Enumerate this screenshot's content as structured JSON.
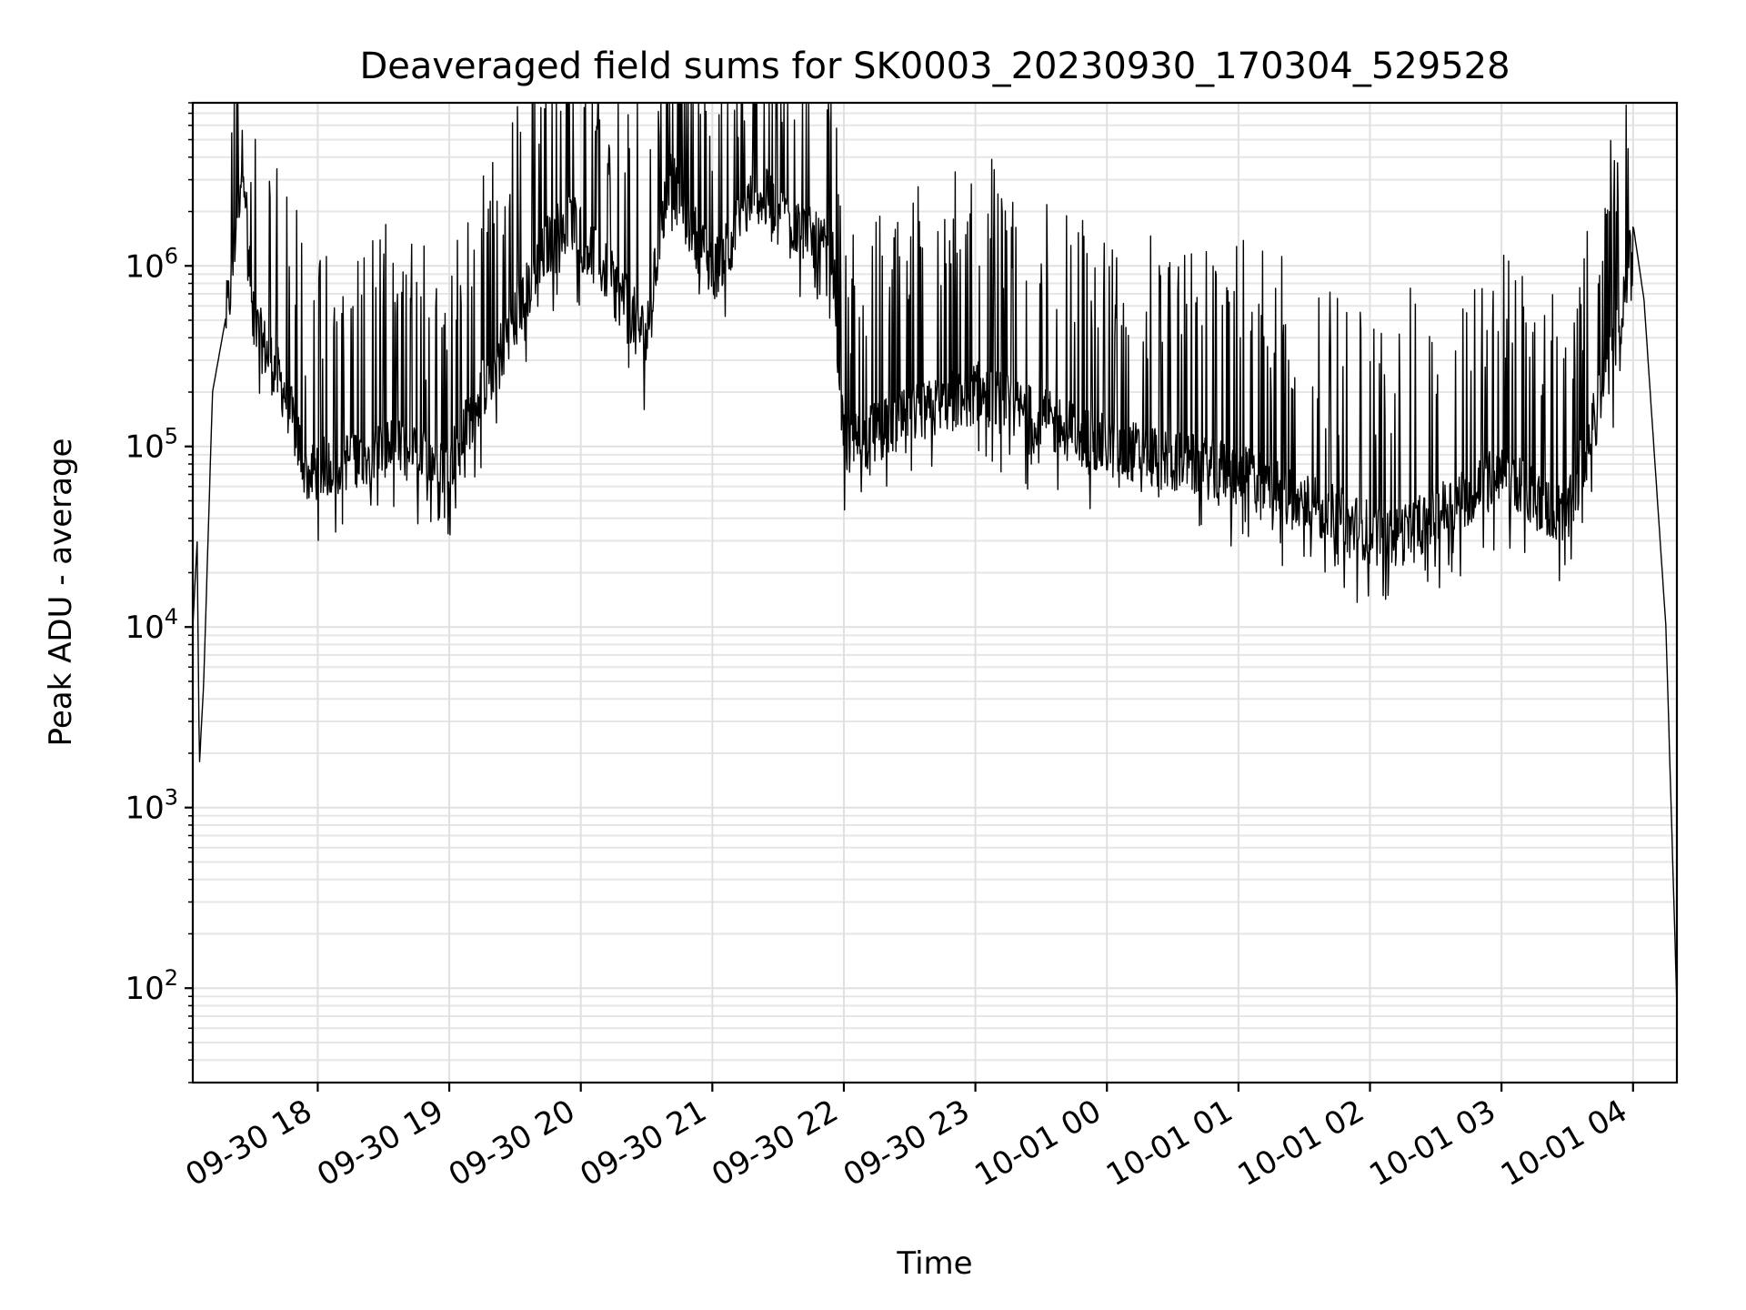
{
  "chart_data": {
    "type": "line",
    "title": "Deaveraged field sums for SK0003_20230930_170304_529528",
    "xlabel": "Time",
    "ylabel": "Peak ADU - average",
    "yscale": "log",
    "ylim": [
      30,
      8000000
    ],
    "xlim": [
      "2023-09-30 17:03",
      "2023-10-01 04:20"
    ],
    "x_ticks": [
      "09-30 18",
      "09-30 19",
      "09-30 20",
      "09-30 21",
      "09-30 22",
      "09-30 23",
      "10-01 00",
      "10-01 01",
      "10-01 02",
      "10-01 03",
      "10-01 04"
    ],
    "y_ticks": [
      {
        "base": "10",
        "exp": "2"
      },
      {
        "base": "10",
        "exp": "3"
      },
      {
        "base": "10",
        "exp": "4"
      },
      {
        "base": "10",
        "exp": "5"
      },
      {
        "base": "10",
        "exp": "6"
      }
    ],
    "grid": true,
    "series": [
      {
        "color": "#000000",
        "points": [
          [
            "2023-09-30 17:03",
            10000
          ],
          [
            "2023-09-30 17:05",
            30000
          ],
          [
            "2023-09-30 17:06",
            1700
          ],
          [
            "2023-09-30 17:08",
            5000
          ],
          [
            "2023-09-30 17:12",
            200000
          ],
          [
            "2023-09-30 17:20",
            700000
          ],
          [
            "2023-09-30 17:26",
            4500000
          ],
          [
            "2023-09-30 17:30",
            500000
          ],
          [
            "2023-09-30 17:45",
            200000
          ],
          [
            "2023-09-30 17:55",
            70000
          ],
          [
            "2023-09-30 18:30",
            100000
          ],
          [
            "2023-09-30 19:00",
            80000
          ],
          [
            "2023-09-30 19:45",
            1300000
          ],
          [
            "2023-09-30 19:55",
            1900000
          ],
          [
            "2023-09-30 20:30",
            400000
          ],
          [
            "2023-09-30 20:40",
            3200000
          ],
          [
            "2023-09-30 21:00",
            900000
          ],
          [
            "2023-09-30 21:20",
            2600000
          ],
          [
            "2023-09-30 21:55",
            1100000
          ],
          [
            "2023-09-30 22:00",
            100000
          ],
          [
            "2023-09-30 23:00",
            200000
          ],
          [
            "2023-10-01 00:00",
            100000
          ],
          [
            "2023-10-01 01:00",
            70000
          ],
          [
            "2023-10-01 02:10",
            30000
          ],
          [
            "2023-10-01 03:00",
            70000
          ],
          [
            "2023-10-01 03:30",
            40000
          ],
          [
            "2023-10-01 03:55",
            500000
          ],
          [
            "2023-10-01 04:00",
            1700000
          ],
          [
            "2023-10-01 04:05",
            650000
          ],
          [
            "2023-10-01 04:15",
            10000
          ],
          [
            "2023-10-01 04:20",
            80
          ]
        ]
      }
    ]
  }
}
